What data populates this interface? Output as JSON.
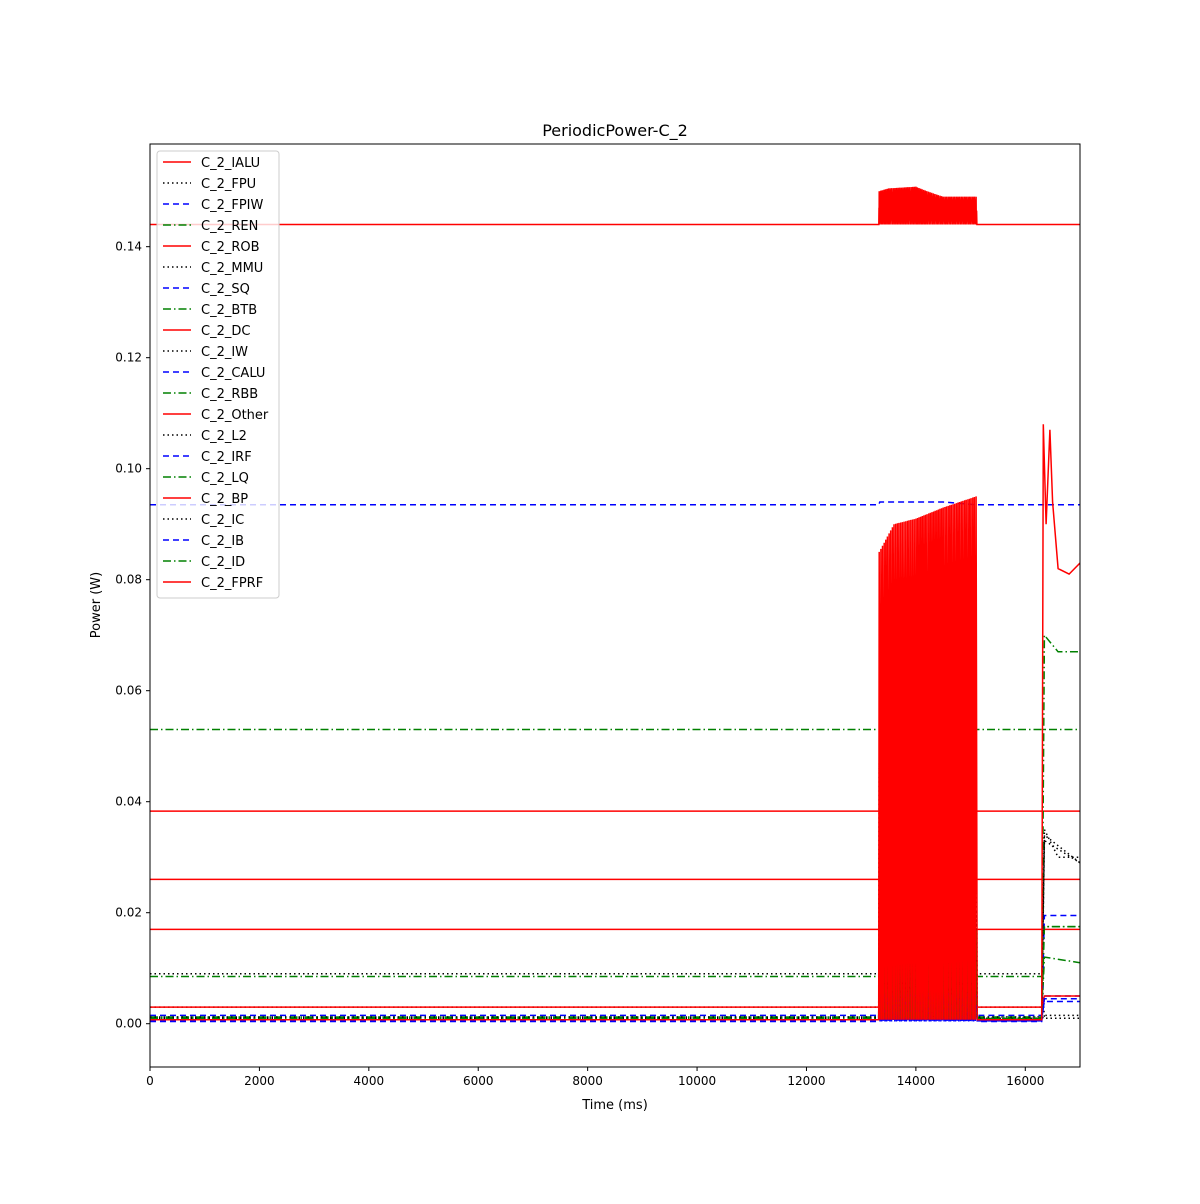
{
  "chart_data": {
    "type": "line",
    "title": "PeriodicPower-C_2",
    "xlabel": "Time (ms)",
    "ylabel": "Power (W)",
    "xlim": [
      0,
      17000
    ],
    "ylim": [
      -0.0078,
      0.1585
    ],
    "xticks": [
      0,
      2000,
      4000,
      6000,
      8000,
      10000,
      12000,
      14000,
      16000
    ],
    "xtick_labels": [
      "0",
      "2000",
      "4000",
      "6000",
      "8000",
      "10000",
      "12000",
      "14000",
      "16000"
    ],
    "yticks": [
      0.0,
      0.02,
      0.04,
      0.06,
      0.08,
      0.1,
      0.12,
      0.14
    ],
    "ytick_labels": [
      "0.00",
      "0.02",
      "0.04",
      "0.06",
      "0.08",
      "0.10",
      "0.12",
      "0.14"
    ],
    "grid": false,
    "legend_position": "upper left",
    "colors": {
      "red": "#ff0000",
      "black": "#000000",
      "blue": "#0000ff",
      "green": "#008000"
    },
    "series": [
      {
        "name": "C_2_IALU",
        "color": "red",
        "style": "solid",
        "x": [
          0,
          13320,
          13330,
          13500,
          14000,
          14200,
          14500,
          15100,
          15120,
          17000
        ],
        "y": [
          0.144,
          0.144,
          0.15,
          0.1505,
          0.1508,
          0.15,
          0.149,
          0.149,
          0.144,
          0.144
        ],
        "oscillation": {
          "x_start": 13320,
          "x_end": 15120,
          "low": 0.144
        }
      },
      {
        "name": "C_2_FPU",
        "color": "black",
        "style": "dotted",
        "x": [
          0,
          13320,
          13400,
          15100,
          15120,
          16300,
          16350,
          17000
        ],
        "y": [
          0.009,
          0.009,
          0.0095,
          0.0095,
          0.009,
          0.009,
          0.001,
          0.001
        ]
      },
      {
        "name": "C_2_FPIW",
        "color": "blue",
        "style": "dashed",
        "x": [
          0,
          13320,
          13340,
          14500,
          15100,
          15120,
          17000
        ],
        "y": [
          0.0935,
          0.0935,
          0.094,
          0.094,
          0.0935,
          0.0935,
          0.0935
        ]
      },
      {
        "name": "C_2_REN",
        "color": "green",
        "style": "dashdot",
        "x": [
          0,
          13320,
          15100,
          16280,
          16300,
          17000
        ],
        "y": [
          0.053,
          0.053,
          0.053,
          0.053,
          0.053,
          0.053
        ]
      },
      {
        "name": "C_2_ROB",
        "color": "red",
        "style": "solid",
        "x": [
          0,
          13320,
          15100,
          16300,
          17000
        ],
        "y": [
          0.0383,
          0.0383,
          0.0383,
          0.0383,
          0.0383
        ]
      },
      {
        "name": "C_2_MMU",
        "color": "black",
        "style": "dotted",
        "x": [
          0,
          13320,
          13330,
          15100,
          15120,
          16300,
          16350,
          16600,
          17000
        ],
        "y": [
          0.003,
          0.003,
          0.0205,
          0.0205,
          0.003,
          0.003,
          0.035,
          0.03,
          0.03
        ],
        "oscillation": {
          "x_start": 13330,
          "x_end": 15100,
          "low": 0.004
        }
      },
      {
        "name": "C_2_SQ",
        "color": "blue",
        "style": "dashed",
        "x": [
          0,
          13320,
          13330,
          15100,
          15120,
          16300,
          16350,
          17000
        ],
        "y": [
          0.0005,
          0.0005,
          0.006,
          0.006,
          0.0005,
          0.0005,
          0.005,
          0.005
        ],
        "oscillation": {
          "x_start": 13330,
          "x_end": 15100,
          "low": 0.0005
        }
      },
      {
        "name": "C_2_BTB",
        "color": "green",
        "style": "dashdot",
        "x": [
          0,
          13320,
          13330,
          15100,
          15120,
          16300,
          16350,
          17000
        ],
        "y": [
          0.0085,
          0.0085,
          0.016,
          0.016,
          0.0085,
          0.0085,
          0.0175,
          0.0175
        ],
        "oscillation": {
          "x_start": 13330,
          "x_end": 15100,
          "low": 0.0085
        }
      },
      {
        "name": "C_2_DC",
        "color": "red",
        "style": "solid",
        "x": [
          0,
          13320,
          15100,
          16300,
          17000
        ],
        "y": [
          0.026,
          0.026,
          0.026,
          0.026,
          0.026
        ]
      },
      {
        "name": "C_2_IW",
        "color": "black",
        "style": "dotted",
        "x": [
          0,
          13320,
          13330,
          15100,
          15120,
          16300,
          16350,
          17000
        ],
        "y": [
          0.001,
          0.001,
          0.019,
          0.019,
          0.001,
          0.001,
          0.033,
          0.029
        ],
        "oscillation": {
          "x_start": 13330,
          "x_end": 15100,
          "low": 0.001
        }
      },
      {
        "name": "C_2_CALU",
        "color": "blue",
        "style": "dashed",
        "x": [
          0,
          13320,
          13330,
          15100,
          15120,
          16300,
          16350,
          17000
        ],
        "y": [
          0.0015,
          0.0015,
          0.005,
          0.005,
          0.0015,
          0.0015,
          0.004,
          0.004
        ],
        "oscillation": {
          "x_start": 13330,
          "x_end": 15100,
          "low": 0.0015
        }
      },
      {
        "name": "C_2_RBB",
        "color": "green",
        "style": "dashdot",
        "x": [
          0,
          13320,
          13330,
          15100,
          15120,
          16300,
          16350,
          17000
        ],
        "y": [
          0.001,
          0.001,
          0.014,
          0.014,
          0.001,
          0.001,
          0.012,
          0.011
        ],
        "oscillation": {
          "x_start": 13330,
          "x_end": 15100,
          "low": 0.001
        }
      },
      {
        "name": "C_2_Other",
        "color": "red",
        "style": "solid",
        "x": [
          0,
          13320,
          15100,
          16300,
          17000
        ],
        "y": [
          0.017,
          0.017,
          0.017,
          0.017,
          0.017
        ]
      },
      {
        "name": "C_2_L2",
        "color": "black",
        "style": "dotted",
        "x": [
          0,
          13320,
          13330,
          15100,
          15120,
          16300,
          16350,
          17000
        ],
        "y": [
          0.0008,
          0.0008,
          0.0125,
          0.0125,
          0.0008,
          0.0008,
          0.0015,
          0.0015
        ],
        "oscillation": {
          "x_start": 13330,
          "x_end": 15100,
          "low": 0.0008
        }
      },
      {
        "name": "C_2_IRF",
        "color": "blue",
        "style": "dashed",
        "x": [
          0,
          13320,
          13330,
          15100,
          15120,
          16300,
          16350,
          17000
        ],
        "y": [
          0.0006,
          0.0006,
          0.0045,
          0.0045,
          0.0006,
          0.0006,
          0.0195,
          0.0195
        ],
        "oscillation": {
          "x_start": 13330,
          "x_end": 15100,
          "low": 0.0006
        }
      },
      {
        "name": "C_2_LQ",
        "color": "green",
        "style": "dashdot",
        "x": [
          0,
          13320,
          13330,
          15100,
          15120,
          16300,
          16350,
          16600,
          17000
        ],
        "y": [
          0.0012,
          0.0012,
          0.0135,
          0.0135,
          0.0012,
          0.0012,
          0.07,
          0.067,
          0.067
        ],
        "oscillation": {
          "x_start": 13330,
          "x_end": 15100,
          "low": 0.0012
        }
      },
      {
        "name": "C_2_BP",
        "color": "red",
        "style": "solid",
        "x": [
          0,
          13320,
          15100,
          16300,
          16350,
          17000
        ],
        "y": [
          0.003,
          0.003,
          0.003,
          0.003,
          0.005,
          0.005
        ]
      },
      {
        "name": "C_2_IC",
        "color": "black",
        "style": "dotted",
        "x": [
          0,
          13320,
          13330,
          15100,
          15120,
          16300,
          16350,
          17000
        ],
        "y": [
          0.0012,
          0.0012,
          0.047,
          0.047,
          0.0012,
          0.0012,
          0.034,
          0.029
        ],
        "oscillation": {
          "x_start": 13330,
          "x_end": 15100,
          "low": 0.0012
        }
      },
      {
        "name": "C_2_IB",
        "color": "blue",
        "style": "dashed",
        "x": [
          0,
          13320,
          13330,
          15100,
          15120,
          16300,
          16350,
          17000
        ],
        "y": [
          0.0004,
          0.0004,
          0.0055,
          0.0055,
          0.0004,
          0.0004,
          0.0045,
          0.0045
        ],
        "oscillation": {
          "x_start": 13330,
          "x_end": 15100,
          "low": 0.0004
        }
      },
      {
        "name": "C_2_ID",
        "color": "green",
        "style": "dashdot",
        "x": [
          0,
          13320,
          13330,
          15100,
          15120,
          16300,
          16350,
          17000
        ],
        "y": [
          0.0009,
          0.0009,
          0.017,
          0.017,
          0.0009,
          0.0009,
          0.0175,
          0.0175
        ],
        "oscillation": {
          "x_start": 13330,
          "x_end": 15100,
          "low": 0.0009
        }
      },
      {
        "name": "C_2_FPRF",
        "color": "red",
        "style": "solid",
        "x": [
          0,
          13320,
          13330,
          13600,
          14000,
          14500,
          15100,
          15120,
          16300,
          16330,
          16380,
          16450,
          16500,
          16600,
          16800,
          17000
        ],
        "y": [
          0.0007,
          0.0007,
          0.085,
          0.09,
          0.091,
          0.093,
          0.095,
          0.0007,
          0.0007,
          0.108,
          0.09,
          0.107,
          0.094,
          0.082,
          0.081,
          0.083
        ],
        "oscillation": {
          "x_start": 13330,
          "x_end": 15100,
          "low": 0.0007
        }
      }
    ]
  }
}
